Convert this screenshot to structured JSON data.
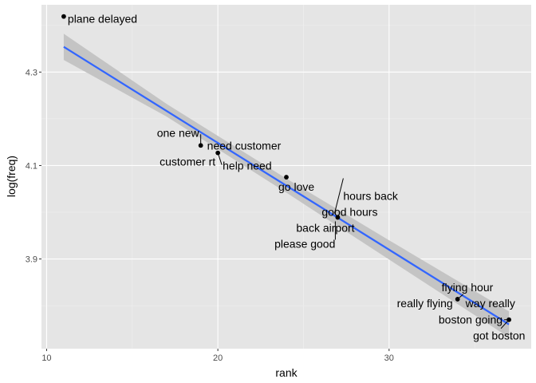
{
  "chart_data": {
    "type": "scatter",
    "title": "",
    "xlabel": "rank",
    "ylabel": "log(freq)",
    "xlim": [
      9.7,
      38.3
    ],
    "ylim": [
      3.708,
      4.444
    ],
    "x_ticks": [
      10,
      20,
      30
    ],
    "x_tick_labels": [
      "10",
      "20",
      "30"
    ],
    "y_ticks": [
      3.9,
      4.1,
      4.3
    ],
    "y_tick_labels": [
      "3.9",
      "4.1",
      "4.3"
    ],
    "grid": true,
    "legend": "none",
    "colors": {
      "panel_background": "#e5e5e5",
      "grid_major": "#ffffff",
      "grid_minor": "#f0f0f0",
      "fit_line": "#3366ff",
      "confidence_band": "#c4c4c4",
      "point": "#000000"
    },
    "points": [
      {
        "label": "plane delayed",
        "x": 11,
        "y": 4.419
      },
      {
        "label": "one new",
        "x": 19,
        "y": 4.143
      },
      {
        "label": "need customer",
        "x": 19,
        "y": 4.143
      },
      {
        "label": "customer rt",
        "x": 20,
        "y": 4.127
      },
      {
        "label": "help need",
        "x": 20,
        "y": 4.127
      },
      {
        "label": "go love",
        "x": 24,
        "y": 4.075
      },
      {
        "label": "hours back",
        "x": 27,
        "y": 3.989
      },
      {
        "label": "good hours",
        "x": 27,
        "y": 3.989
      },
      {
        "label": "back airport",
        "x": 27,
        "y": 3.989
      },
      {
        "label": "please good",
        "x": 27,
        "y": 3.989
      },
      {
        "label": "flying hour",
        "x": 34,
        "y": 3.814
      },
      {
        "label": "really flying",
        "x": 34,
        "y": 3.814
      },
      {
        "label": "way really",
        "x": 34,
        "y": 3.814
      },
      {
        "label": "boston going",
        "x": 37,
        "y": 3.77
      },
      {
        "label": "got boston",
        "x": 37,
        "y": 3.77
      }
    ],
    "fit": {
      "method": "lm",
      "line": [
        {
          "x": 11,
          "y": 4.354
        },
        {
          "x": 37,
          "y": 3.76
        }
      ],
      "band": [
        {
          "x": 11,
          "lower": 4.326,
          "upper": 4.382
        },
        {
          "x": 17,
          "lower": 4.205,
          "upper": 4.232
        },
        {
          "x": 24,
          "lower": 4.042,
          "upper": 4.072
        },
        {
          "x": 30,
          "lower": 3.899,
          "upper": 3.94
        },
        {
          "x": 37,
          "lower": 3.732,
          "upper": 3.788
        }
      ]
    }
  }
}
